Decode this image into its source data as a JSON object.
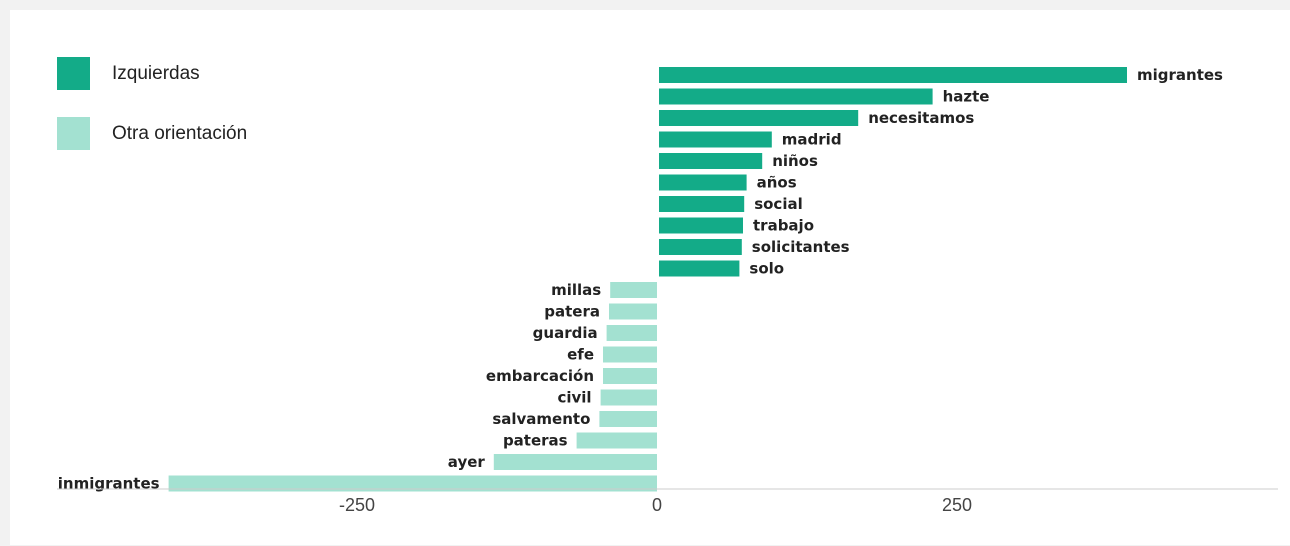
{
  "chart_data": {
    "type": "bar",
    "orientation": "horizontal",
    "series": [
      {
        "name": "Izquierdas",
        "color": "#13ab88",
        "categories": [
          "migrantes",
          "hazte",
          "necesitamos",
          "madrid",
          "niños",
          "años",
          "social",
          "trabajo",
          "solicitantes",
          "solo"
        ],
        "values": [
          390,
          228,
          166,
          94,
          86,
          73,
          71,
          70,
          69,
          67
        ]
      },
      {
        "name": "Otra orientación",
        "color": "#a3e1d1",
        "categories": [
          "millas",
          "patera",
          "guardia",
          "efe",
          "embarcación",
          "civil",
          "salvamento",
          "pateras",
          "ayer",
          "inmigrantes"
        ],
        "values": [
          -39,
          -40,
          -42,
          -45,
          -45,
          -47,
          -48,
          -67,
          -136,
          -407
        ]
      }
    ],
    "xlim": [
      -500,
      520
    ],
    "xticks": [
      -250,
      0,
      250
    ],
    "xtick_labels": [
      "-250",
      "0",
      "250"
    ],
    "legend": "top-left",
    "grid": false,
    "axis_color": "#cccccc"
  }
}
